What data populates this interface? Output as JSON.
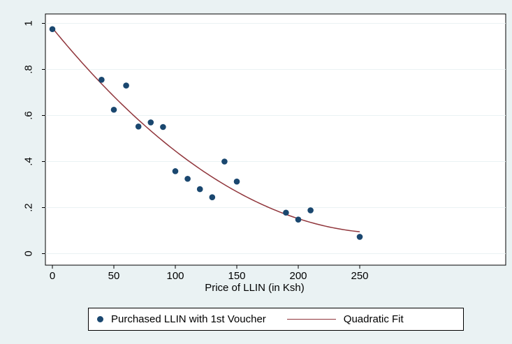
{
  "colors": {
    "background": "#eaf2f3",
    "plot_background": "#ffffff",
    "grid": "#eaf2f3",
    "markers": "#1a476f",
    "fit_line": "#90353b"
  },
  "chart_data": {
    "type": "scatter",
    "title": "",
    "xlabel": "Price of LLIN (in Ksh)",
    "ylabel": "",
    "xlim": [
      0,
      250
    ],
    "ylim": [
      0,
      1
    ],
    "xticks": [
      0,
      50,
      100,
      150,
      200,
      250
    ],
    "xtick_labels": [
      "0",
      "50",
      "100",
      "150",
      "200",
      "250"
    ],
    "yticks": [
      0,
      0.2,
      0.4,
      0.6,
      0.8,
      1
    ],
    "ytick_labels": [
      "0",
      ".2",
      ".4",
      ".6",
      ".8",
      "1"
    ],
    "grid": true,
    "legend_position": "bottom",
    "series": [
      {
        "name": "Purchased LLIN with 1st Voucher",
        "type": "scatter",
        "x": [
          0,
          40,
          50,
          60,
          70,
          80,
          90,
          100,
          110,
          120,
          130,
          140,
          150,
          190,
          200,
          210,
          250
        ],
        "y": [
          0.975,
          0.755,
          0.625,
          0.73,
          0.552,
          0.57,
          0.55,
          0.358,
          0.325,
          0.28,
          0.245,
          0.4,
          0.313,
          0.178,
          0.148,
          0.188,
          0.073
        ]
      },
      {
        "name": "Quadratic Fit",
        "type": "line",
        "coefficients": {
          "a": 1.2e-05,
          "b": -0.00654,
          "c": 0.98
        }
      }
    ]
  }
}
